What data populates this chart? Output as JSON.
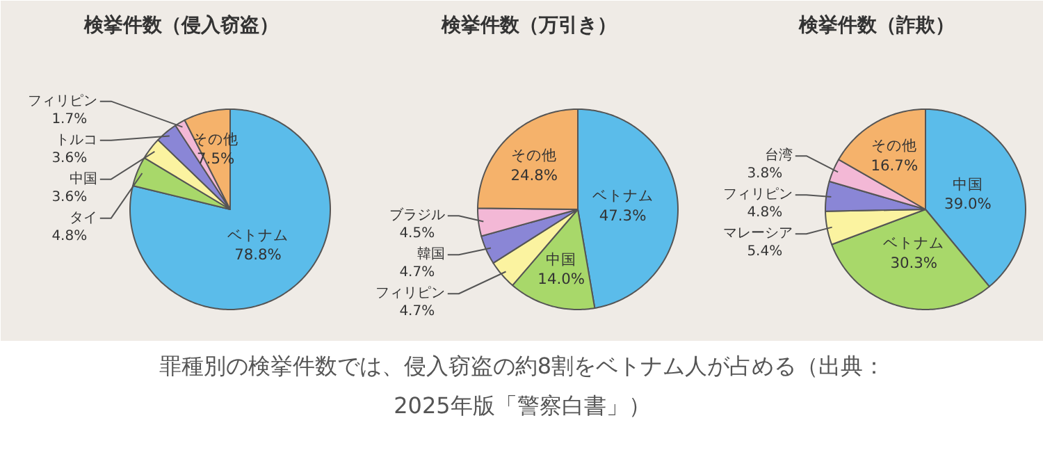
{
  "chart_data": [
    {
      "type": "pie",
      "title": "検挙件数（侵入窃盗）",
      "categories": [
        "ベトナム",
        "タイ",
        "中国",
        "トルコ",
        "フィリピン",
        "その他"
      ],
      "values": [
        78.8,
        4.8,
        3.6,
        3.6,
        1.7,
        7.5
      ],
      "colors": [
        "#5bbcea",
        "#a8d86a",
        "#fbf3a0",
        "#8a86d6",
        "#f3b8d6",
        "#f5b26b"
      ],
      "value_labels": [
        "78.8%",
        "4.8%",
        "3.6%",
        "3.6%",
        "1.7%",
        "7.5%"
      ],
      "annotations": [
        "罪種別の検挙件数では、侵入窃盗の約8割をベトナム人が占める（出典：\n2025年版「警察白書」）"
      ]
    },
    {
      "type": "pie",
      "title": "検挙件数（万引き）",
      "categories": [
        "ベトナム",
        "中国",
        "フィリピン",
        "韓国",
        "ブラジル",
        "その他"
      ],
      "values": [
        47.3,
        14.0,
        4.7,
        4.7,
        4.5,
        24.8
      ],
      "colors": [
        "#5bbcea",
        "#a8d86a",
        "#fbf3a0",
        "#8a86d6",
        "#f3b8d6",
        "#f5b26b"
      ],
      "value_labels": [
        "47.3%",
        "14.0%",
        "4.7%",
        "4.7%",
        "4.5%",
        "24.8%"
      ]
    },
    {
      "type": "pie",
      "title": "検挙件数（詐欺）",
      "categories": [
        "中国",
        "ベトナム",
        "マレーシア",
        "フィリピン",
        "台湾",
        "その他"
      ],
      "values": [
        39.0,
        30.3,
        5.4,
        4.8,
        3.8,
        16.7
      ],
      "colors": [
        "#5bbcea",
        "#a8d86a",
        "#fbf3a0",
        "#8a86d6",
        "#f3b8d6",
        "#f5b26b"
      ],
      "value_labels": [
        "39.0%",
        "30.3%",
        "5.4%",
        "4.8%",
        "3.8%",
        "16.7%"
      ]
    }
  ]
}
